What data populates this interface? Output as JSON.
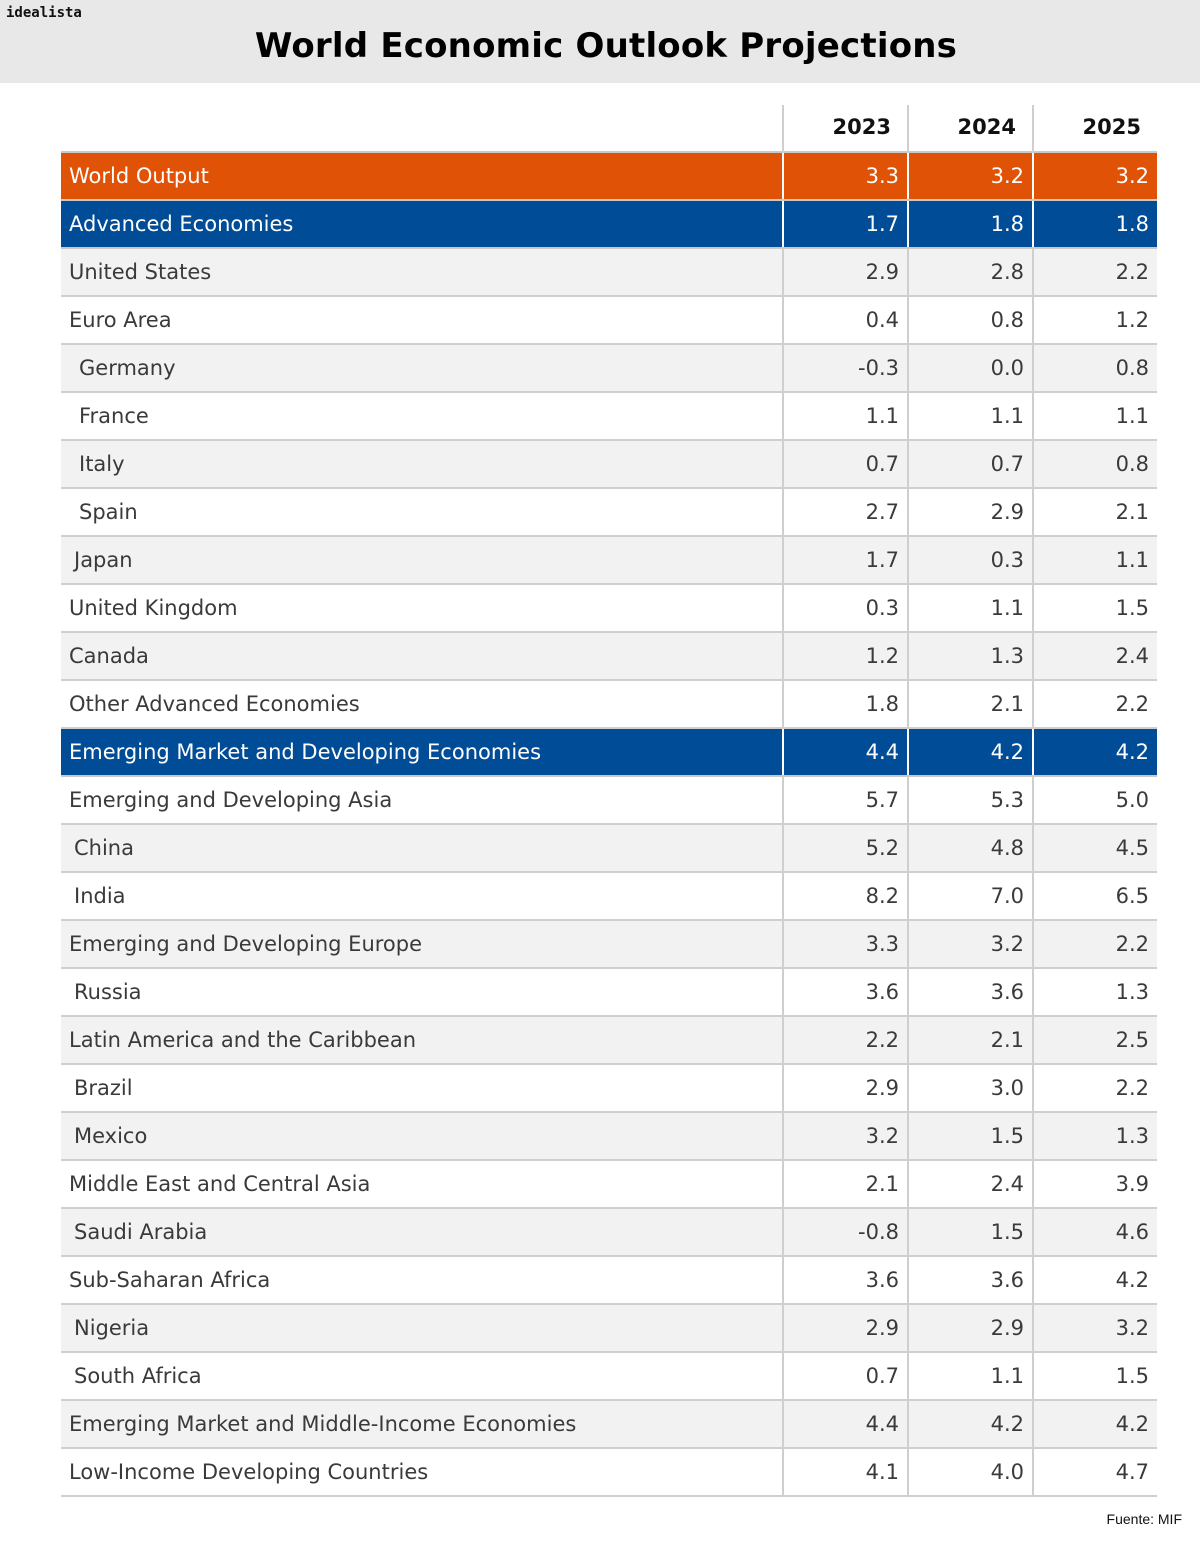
{
  "brand": "idealista",
  "source": "Fuente: MIF",
  "chart_data": {
    "type": "table",
    "title": "World Economic Outlook Projections",
    "columns": [
      "2023",
      "2024",
      "2025"
    ],
    "rows": [
      {
        "label": "World Output",
        "values": [
          "3.3",
          "3.2",
          "3.2"
        ],
        "style": "orange",
        "indent": 0
      },
      {
        "label": "Advanced Economies",
        "values": [
          "1.7",
          "1.8",
          "1.8"
        ],
        "style": "blue",
        "indent": 0
      },
      {
        "label": "United States",
        "values": [
          "2.9",
          "2.8",
          "2.2"
        ],
        "style": "alt",
        "indent": 0
      },
      {
        "label": "Euro Area",
        "values": [
          "0.4",
          "0.8",
          "1.2"
        ],
        "style": "white",
        "indent": 0
      },
      {
        "label": "Germany",
        "values": [
          "-0.3",
          "0.0",
          "0.8"
        ],
        "style": "alt",
        "indent": 1
      },
      {
        "label": "France",
        "values": [
          "1.1",
          "1.1",
          "1.1"
        ],
        "style": "white",
        "indent": 1
      },
      {
        "label": "Italy",
        "values": [
          "0.7",
          "0.7",
          "0.8"
        ],
        "style": "alt",
        "indent": 1
      },
      {
        "label": "Spain",
        "values": [
          "2.7",
          "2.9",
          "2.1"
        ],
        "style": "white",
        "indent": 1
      },
      {
        "label": "Japan",
        "values": [
          "1.7",
          "0.3",
          "1.1"
        ],
        "style": "alt",
        "indent": 2
      },
      {
        "label": "United Kingdom",
        "values": [
          "0.3",
          "1.1",
          "1.5"
        ],
        "style": "white",
        "indent": 0
      },
      {
        "label": "Canada",
        "values": [
          "1.2",
          "1.3",
          "2.4"
        ],
        "style": "alt",
        "indent": 0
      },
      {
        "label": "Other Advanced Economies",
        "values": [
          "1.8",
          "2.1",
          "2.2"
        ],
        "style": "white",
        "indent": 0
      },
      {
        "label": "Emerging Market and Developing Economies",
        "values": [
          "4.4",
          "4.2",
          "4.2"
        ],
        "style": "blue",
        "indent": 0
      },
      {
        "label": "Emerging and Developing Asia",
        "values": [
          "5.7",
          "5.3",
          "5.0"
        ],
        "style": "white",
        "indent": 0
      },
      {
        "label": "China",
        "values": [
          "5.2",
          "4.8",
          "4.5"
        ],
        "style": "alt",
        "indent": 2
      },
      {
        "label": "India",
        "values": [
          "8.2",
          "7.0",
          "6.5"
        ],
        "style": "white",
        "indent": 2
      },
      {
        "label": "Emerging and Developing Europe",
        "values": [
          "3.3",
          "3.2",
          "2.2"
        ],
        "style": "alt",
        "indent": 0
      },
      {
        "label": "Russia",
        "values": [
          "3.6",
          "3.6",
          "1.3"
        ],
        "style": "white",
        "indent": 2
      },
      {
        "label": "Latin America and the Caribbean",
        "values": [
          "2.2",
          "2.1",
          "2.5"
        ],
        "style": "alt",
        "indent": 0
      },
      {
        "label": "Brazil",
        "values": [
          "2.9",
          "3.0",
          "2.2"
        ],
        "style": "white",
        "indent": 2
      },
      {
        "label": "Mexico",
        "values": [
          "3.2",
          "1.5",
          "1.3"
        ],
        "style": "alt",
        "indent": 2
      },
      {
        "label": "Middle East and Central Asia",
        "values": [
          "2.1",
          "2.4",
          "3.9"
        ],
        "style": "white",
        "indent": 0
      },
      {
        "label": "Saudi Arabia",
        "values": [
          "-0.8",
          "1.5",
          "4.6"
        ],
        "style": "alt",
        "indent": 2
      },
      {
        "label": "Sub-Saharan Africa",
        "values": [
          "3.6",
          "3.6",
          "4.2"
        ],
        "style": "white",
        "indent": 0
      },
      {
        "label": "Nigeria",
        "values": [
          "2.9",
          "2.9",
          "3.2"
        ],
        "style": "alt",
        "indent": 2
      },
      {
        "label": "South Africa",
        "values": [
          "0.7",
          "1.1",
          "1.5"
        ],
        "style": "white",
        "indent": 2
      },
      {
        "label": "Emerging Market and Middle-Income Economies",
        "values": [
          "4.4",
          "4.2",
          "4.2"
        ],
        "style": "alt",
        "indent": 0
      },
      {
        "label": "Low-Income Developing Countries",
        "values": [
          "4.1",
          "4.0",
          "4.7"
        ],
        "style": "white",
        "indent": 0
      }
    ]
  },
  "colors": {
    "orange": "#e05206",
    "blue": "#004c97",
    "header_bg": "#e8e8e8",
    "alt_row": "#f2f2f2"
  }
}
